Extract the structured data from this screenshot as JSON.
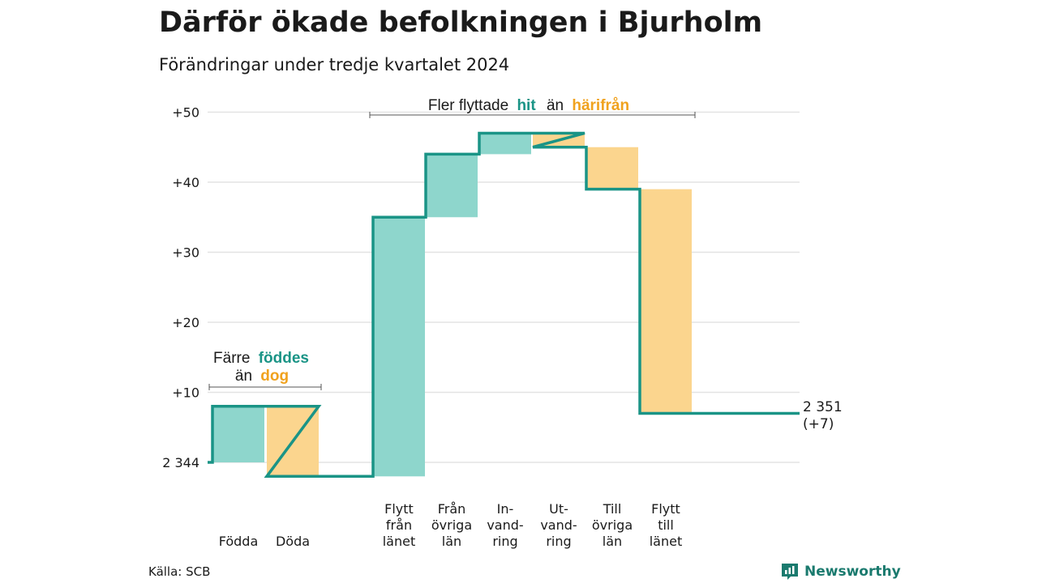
{
  "title": "Därför ökade befolkningen i Bjurholm",
  "subtitle": "Förändringar under tredje kvartalet 2024",
  "source": "Källa: SCB",
  "brand": {
    "name": "Newsworthy",
    "icon": "newsworthy-logo-icon"
  },
  "colors": {
    "increase": "#8ed6cc",
    "decrease": "#fbd58e",
    "line": "#1a9486",
    "grid": "#e3e3e3",
    "accent_hit": "#1a9486",
    "accent_harifran": "#f0a21e",
    "brand": "#1a7a6e"
  },
  "annotations": {
    "births": {
      "line1_prefix": "Färre",
      "line1_em": "föddes",
      "line2_prefix": "än",
      "line2_em": "dog"
    },
    "migration": {
      "prefix": "Fler flyttade",
      "em1": "hit",
      "middle": "än",
      "em2": "härifrån"
    }
  },
  "chart_data": {
    "type": "waterfall",
    "title": "Därför ökade befolkningen i Bjurholm",
    "subtitle": "Förändringar under tredje kvartalet 2024",
    "base": 2344,
    "start_label": "2 344",
    "end_label_line1": "2 351",
    "end_label_line2": "(+7)",
    "ylim": [
      -3,
      50
    ],
    "yticks": [
      0,
      10,
      20,
      30,
      40,
      50
    ],
    "ytick_labels": [
      "2 344",
      "+10",
      "+20",
      "+30",
      "+40",
      "+50"
    ],
    "grid": true,
    "steps": [
      {
        "label": [
          "Födda"
        ],
        "value": 8,
        "type": "increase"
      },
      {
        "label": [
          "Döda"
        ],
        "value": -10,
        "type": "decrease"
      },
      {
        "label": [
          "Flytt",
          "från",
          "länet"
        ],
        "value": 37,
        "type": "increase"
      },
      {
        "label": [
          "Från",
          "övriga",
          "län"
        ],
        "value": 9,
        "type": "increase"
      },
      {
        "label": [
          "In-",
          "vand-",
          "ring"
        ],
        "value": 3,
        "type": "increase"
      },
      {
        "label": [
          "Ut-",
          "vand-",
          "ring"
        ],
        "value": -2,
        "type": "decrease"
      },
      {
        "label": [
          "Till",
          "övriga",
          "län"
        ],
        "value": -6,
        "type": "decrease"
      },
      {
        "label": [
          "Flytt",
          "till",
          "länet"
        ],
        "value": -32,
        "type": "decrease"
      }
    ],
    "end_value": 7
  }
}
